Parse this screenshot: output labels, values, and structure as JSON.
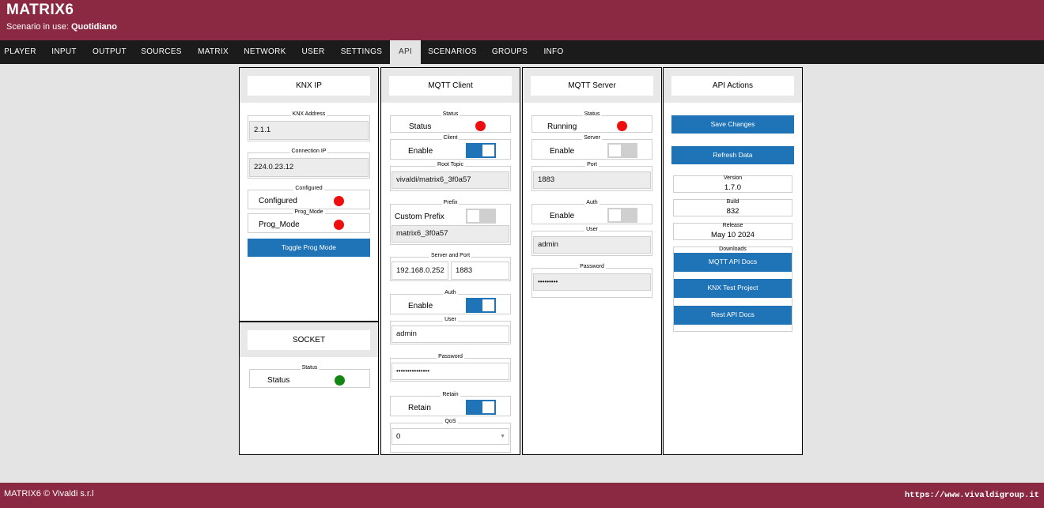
{
  "app": {
    "title": "MATRIX6",
    "scenario_label": "Scenario in use:",
    "scenario_name": "Quotidiano"
  },
  "nav": [
    "PLAYER",
    "INPUT",
    "OUTPUT",
    "SOURCES",
    "MATRIX",
    "NETWORK",
    "USER",
    "SETTINGS",
    "API",
    "SCENARIOS",
    "GROUPS",
    "INFO"
  ],
  "nav_active": "API",
  "knx": {
    "title": "KNX IP",
    "address_label": "KNX Address",
    "address": "2.1.1",
    "ip_label": "Connection IP",
    "ip": "224.0.23.12",
    "configured_label": "Configured",
    "configured_text": "Configured",
    "configured_status": "red",
    "prog_label": "Prog_Mode",
    "prog_text": "Prog_Mode",
    "prog_status": "red",
    "toggle_button": "Toggle Prog Mode"
  },
  "socket": {
    "title": "SOCKET",
    "status_label": "Status",
    "status_text": "Status",
    "status": "green"
  },
  "mqtt_client": {
    "title": "MQTT Client",
    "status_label": "Status",
    "status_text": "Status",
    "status": "red",
    "client_label": "Client",
    "enable_text": "Enable",
    "enabled": true,
    "root_topic_label": "Root Topic",
    "root_topic": "vivaldi/matrix6_3f0a57",
    "prefix_label": "Prefix",
    "custom_prefix_text": "Custom Prefix",
    "custom_prefix": false,
    "prefix": "matrix6_3f0a57",
    "server_label": "Server and Port",
    "server": "192.168.0.252",
    "port": "1883",
    "auth_label": "Auth",
    "auth_text": "Enable",
    "auth_enabled": true,
    "user_label": "User",
    "user": "admin",
    "password_label": "Password",
    "password": "•••••••••••••••",
    "retain_label": "Retain",
    "retain_text": "Retain",
    "retain": true,
    "qos_label": "QoS",
    "qos": "0"
  },
  "mqtt_server": {
    "title": "MQTT Server",
    "status_label": "Status",
    "status_text": "Running",
    "status": "red",
    "server_label": "Server",
    "enable_text": "Enable",
    "enabled": false,
    "port_label": "Port",
    "port": "1883",
    "auth_label": "Auth",
    "auth_text": "Enable",
    "auth_enabled": false,
    "user_label": "User",
    "user": "admin",
    "password_label": "Password",
    "password": "•••••••••"
  },
  "api_actions": {
    "title": "API Actions",
    "save_button": "Save Changes",
    "refresh_button": "Refresh Data",
    "version_label": "Version",
    "version": "1.7.0",
    "build_label": "Build",
    "build": "832",
    "release_label": "Release",
    "release": "May 10 2024",
    "downloads_label": "Downloads",
    "downloads": [
      "MQTT API Docs",
      "KNX Test Project",
      "Rest API Docs"
    ]
  },
  "footer": {
    "copyright": "MATRIX6 © Vivaldi s.r.l",
    "site": "https://www.vivaldigroup.it"
  },
  "colors": {
    "brand": "#8b2942",
    "nav_bg": "#1b1b1b",
    "accent": "#1f73b7",
    "status_red": "#ee0e0e",
    "status_green": "#138513"
  }
}
